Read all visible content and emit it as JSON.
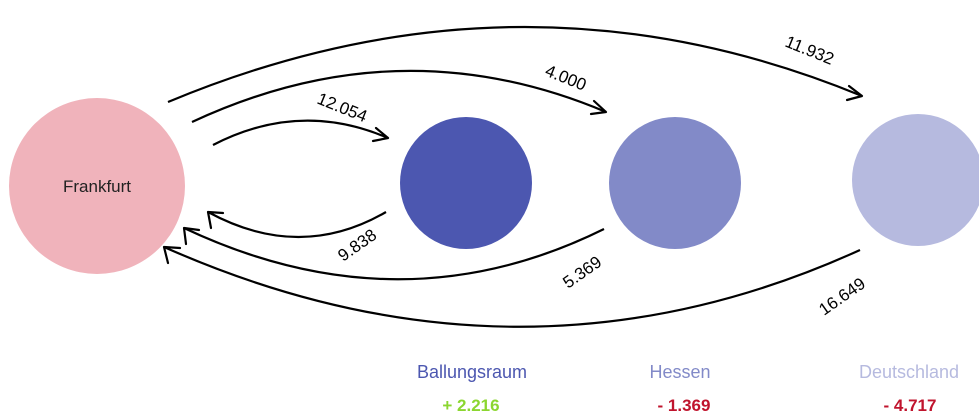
{
  "center": {
    "label": "Frankfurt",
    "color": "#f0b3bb"
  },
  "regions": [
    {
      "name": "Ballungsraum",
      "balance": "+ 2.216",
      "color": "#4c57b0",
      "balance_color": "#8bd630"
    },
    {
      "name": "Hessen",
      "balance": "- 1.369",
      "color": "#828ac8",
      "balance_color": "#c0142d"
    },
    {
      "name": "Deutschland",
      "balance": "- 4.717",
      "color": "#b6badf",
      "balance_color": "#c0142d"
    }
  ],
  "flows": {
    "to_ballungsraum": "12.054",
    "to_hessen": "4.000",
    "to_deutschland": "11.932",
    "from_ballungsraum": "9.838",
    "from_hessen": "5.369",
    "from_deutschland": "16.649"
  }
}
